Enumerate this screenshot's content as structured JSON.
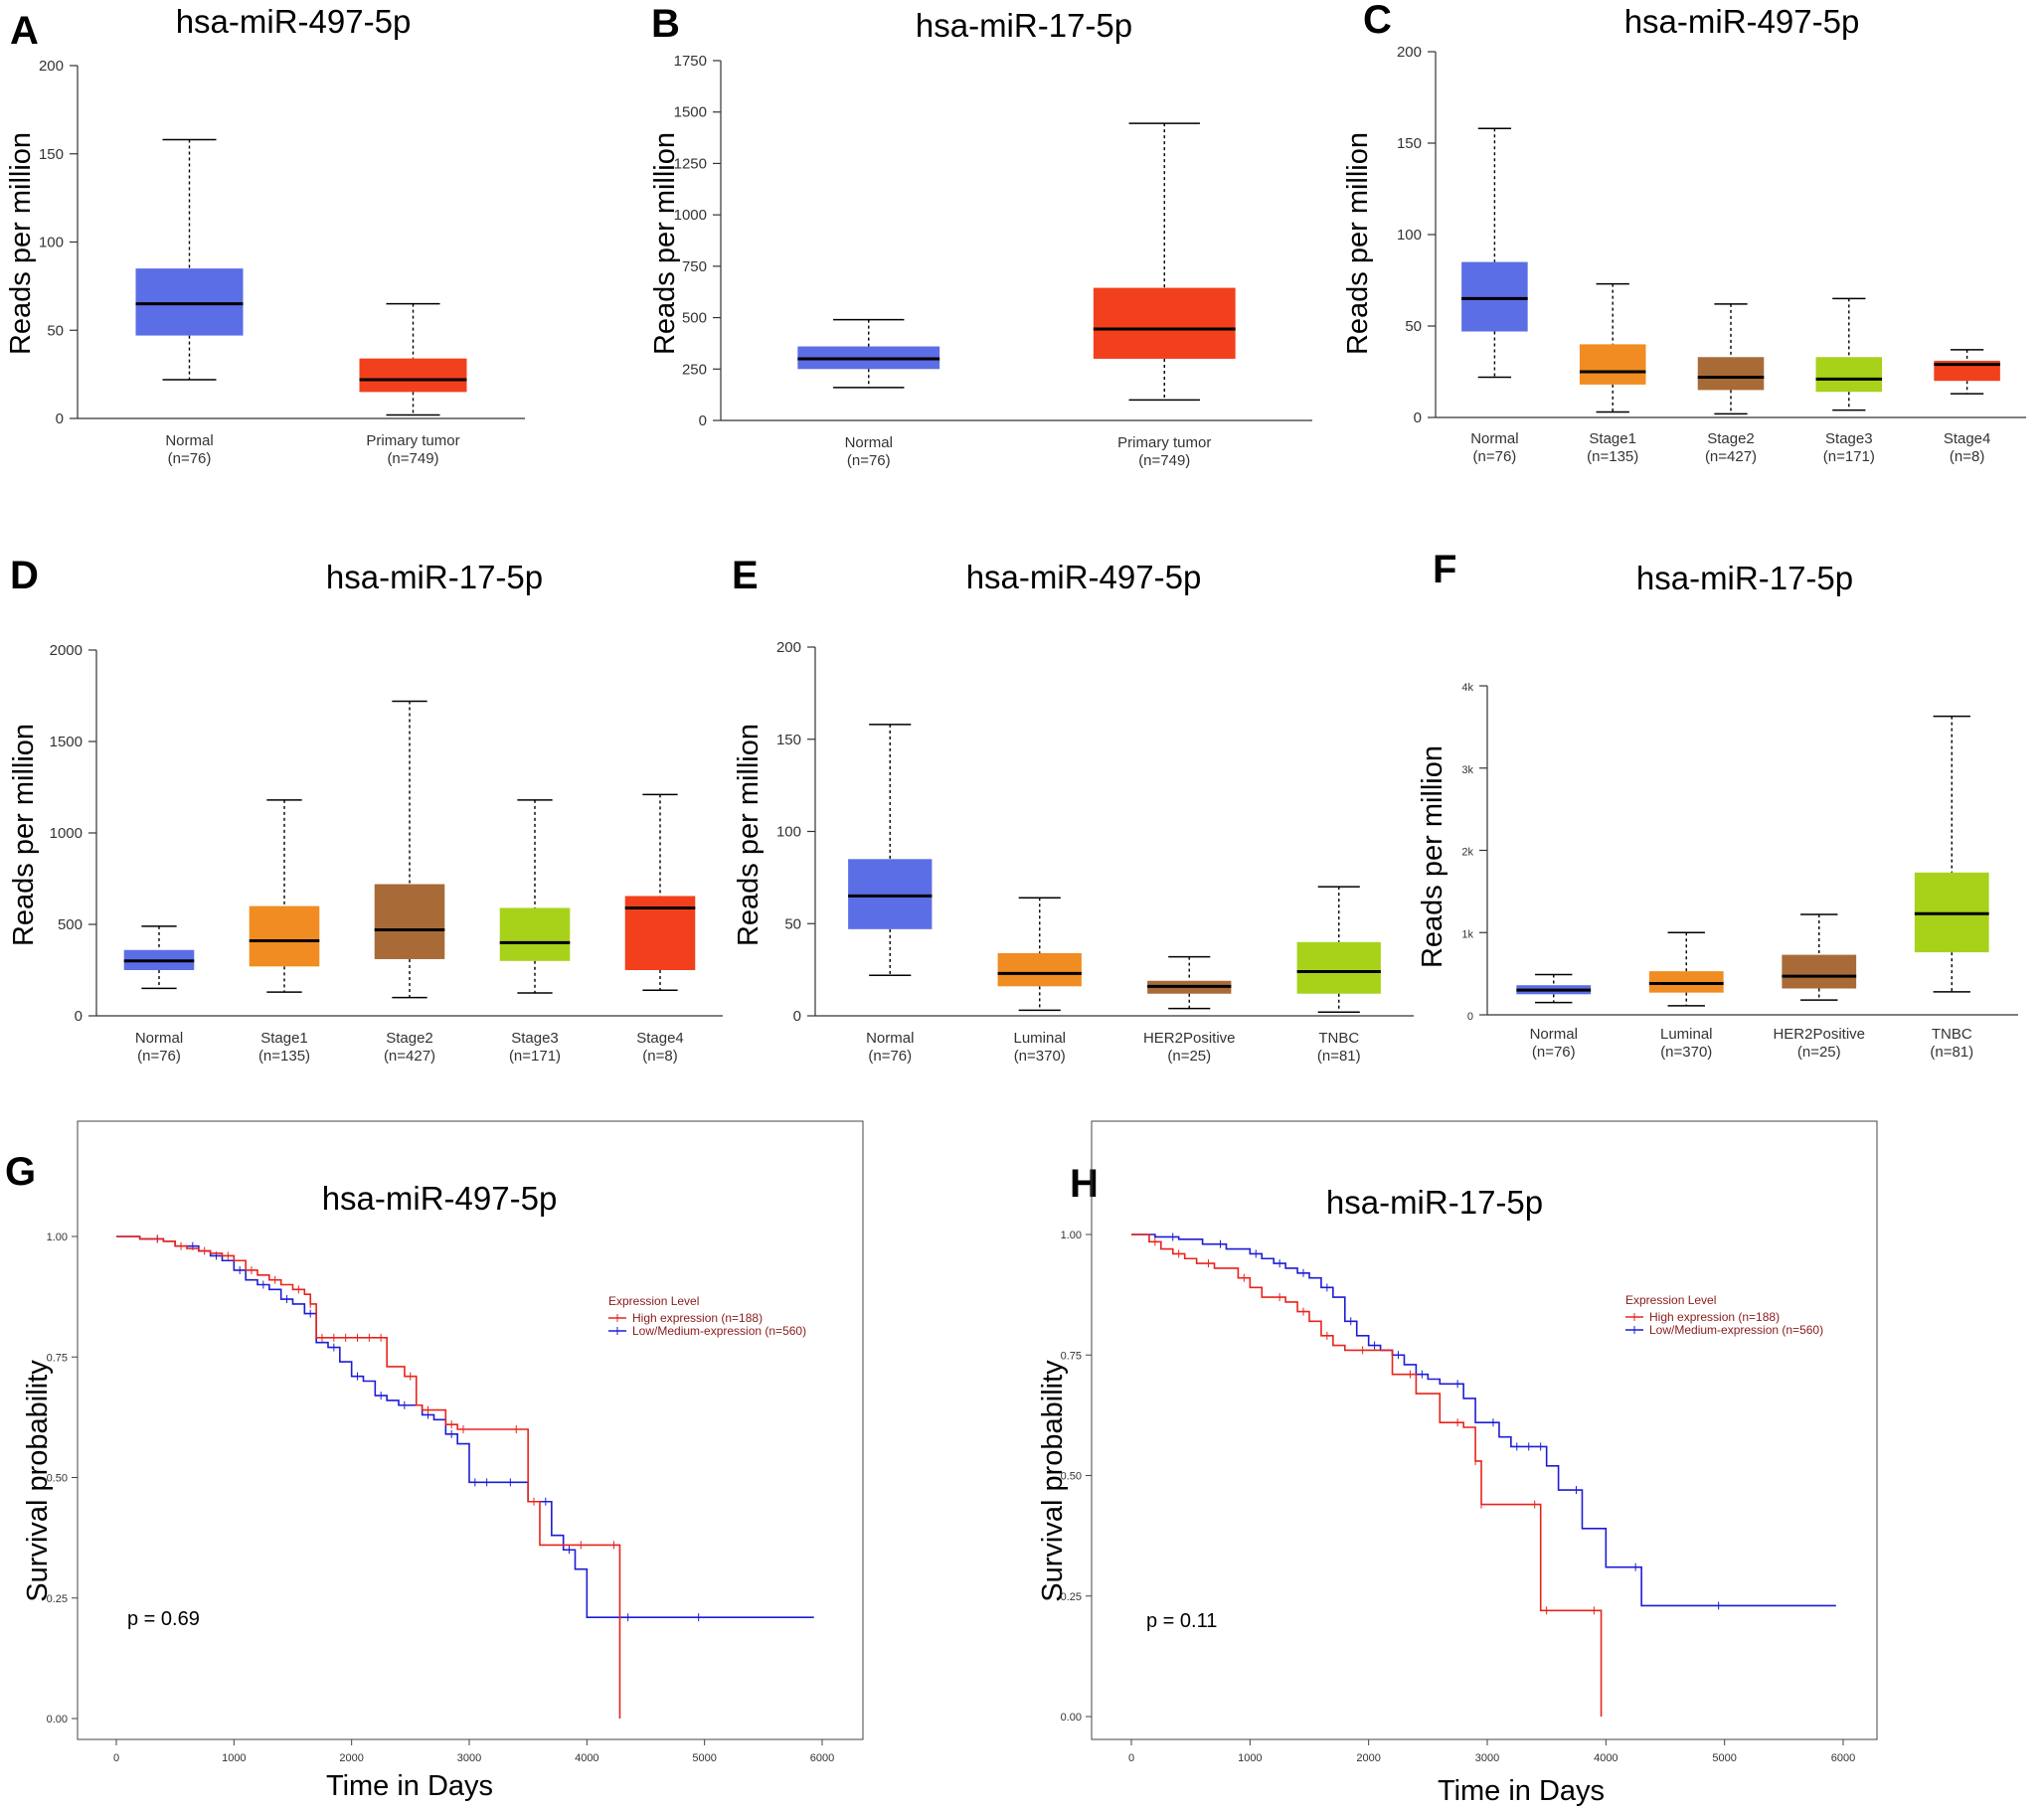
{
  "colors": {
    "normal": "#5b6ee6",
    "tumor": "#f2401c",
    "stage1": "#f08c21",
    "stage2": "#a86b38",
    "stage3": "#a8d21a",
    "stage4": "#f2401c",
    "luminal": "#f08c21",
    "her2": "#a86b38",
    "tnbc": "#a8d21a",
    "high": "#e8231b",
    "low": "#1c1cd6"
  },
  "chart_data": [
    {
      "id": "A",
      "type": "box",
      "title": "hsa-miR-497-5p",
      "ylabel": "Reads per million",
      "ylim": [
        0,
        200
      ],
      "yticks": [
        0,
        50,
        100,
        150,
        200
      ],
      "ytick_labels": [
        "0",
        "50",
        "100",
        "150",
        "200"
      ],
      "categories": [
        {
          "name": "Normal",
          "n": "(n=76)",
          "color": "normal",
          "min": 22,
          "q1": 47,
          "median": 65,
          "q3": 85,
          "max": 158
        },
        {
          "name": "Primary tumor",
          "n": "(n=749)",
          "color": "tumor",
          "min": 2,
          "q1": 15,
          "median": 22,
          "q3": 34,
          "max": 65
        }
      ]
    },
    {
      "id": "B",
      "type": "box",
      "title": "hsa-miR-17-5p",
      "ylabel": "Reads per million",
      "ylim": [
        0,
        1750
      ],
      "yticks": [
        0,
        250,
        500,
        750,
        1000,
        1250,
        1500,
        1750
      ],
      "ytick_labels": [
        "0",
        "250",
        "500",
        "750",
        "1000",
        "1250",
        "1500",
        "1750"
      ],
      "categories": [
        {
          "name": "Normal",
          "n": "(n=76)",
          "color": "normal",
          "min": 160,
          "q1": 250,
          "median": 300,
          "q3": 360,
          "max": 490
        },
        {
          "name": "Primary tumor",
          "n": "(n=749)",
          "color": "tumor",
          "min": 100,
          "q1": 300,
          "median": 445,
          "q3": 645,
          "max": 1445
        }
      ]
    },
    {
      "id": "C",
      "type": "box",
      "title": "hsa-miR-497-5p",
      "ylabel": "Reads per million",
      "ylim": [
        0,
        200
      ],
      "yticks": [
        0,
        50,
        100,
        150,
        200
      ],
      "ytick_labels": [
        "0",
        "50",
        "100",
        "150",
        "200"
      ],
      "categories": [
        {
          "name": "Normal",
          "n": "(n=76)",
          "color": "normal",
          "min": 22,
          "q1": 47,
          "median": 65,
          "q3": 85,
          "max": 158
        },
        {
          "name": "Stage1",
          "n": "(n=135)",
          "color": "stage1",
          "min": 3,
          "q1": 18,
          "median": 25,
          "q3": 40,
          "max": 73
        },
        {
          "name": "Stage2",
          "n": "(n=427)",
          "color": "stage2",
          "min": 2,
          "q1": 15,
          "median": 22,
          "q3": 33,
          "max": 62
        },
        {
          "name": "Stage3",
          "n": "(n=171)",
          "color": "stage3",
          "min": 4,
          "q1": 14,
          "median": 21,
          "q3": 33,
          "max": 65
        },
        {
          "name": "Stage4",
          "n": "(n=8)",
          "color": "stage4",
          "min": 13,
          "q1": 20,
          "median": 29,
          "q3": 31,
          "max": 37
        }
      ]
    },
    {
      "id": "D",
      "type": "box",
      "title": "hsa-miR-17-5p",
      "ylabel": "Reads per million",
      "ylim": [
        0,
        2000
      ],
      "yticks": [
        0,
        500,
        1000,
        1500,
        2000
      ],
      "ytick_labels": [
        "0",
        "500",
        "1000",
        "1500",
        "2000"
      ],
      "categories": [
        {
          "name": "Normal",
          "n": "(n=76)",
          "color": "normal",
          "min": 150,
          "q1": 250,
          "median": 300,
          "q3": 360,
          "max": 490
        },
        {
          "name": "Stage1",
          "n": "(n=135)",
          "color": "stage1",
          "min": 130,
          "q1": 270,
          "median": 410,
          "q3": 600,
          "max": 1180
        },
        {
          "name": "Stage2",
          "n": "(n=427)",
          "color": "stage2",
          "min": 100,
          "q1": 310,
          "median": 470,
          "q3": 720,
          "max": 1720
        },
        {
          "name": "Stage3",
          "n": "(n=171)",
          "color": "stage3",
          "min": 125,
          "q1": 300,
          "median": 400,
          "q3": 590,
          "max": 1180
        },
        {
          "name": "Stage4",
          "n": "(n=8)",
          "color": "stage4",
          "min": 140,
          "q1": 250,
          "median": 590,
          "q3": 655,
          "max": 1210
        }
      ]
    },
    {
      "id": "E",
      "type": "box",
      "title": "hsa-miR-497-5p",
      "ylabel": "Reads per million",
      "ylim": [
        0,
        200
      ],
      "yticks": [
        0,
        50,
        100,
        150,
        200
      ],
      "ytick_labels": [
        "0",
        "50",
        "100",
        "150",
        "200"
      ],
      "categories": [
        {
          "name": "Normal",
          "n": "(n=76)",
          "color": "normal",
          "min": 22,
          "q1": 47,
          "median": 65,
          "q3": 85,
          "max": 158
        },
        {
          "name": "Luminal",
          "n": "(n=370)",
          "color": "luminal",
          "min": 3,
          "q1": 16,
          "median": 23,
          "q3": 34,
          "max": 64
        },
        {
          "name": "HER2Positive",
          "n": "(n=25)",
          "color": "her2",
          "min": 4,
          "q1": 12,
          "median": 16,
          "q3": 19,
          "max": 32
        },
        {
          "name": "TNBC",
          "n": "(n=81)",
          "color": "tnbc",
          "min": 2,
          "q1": 12,
          "median": 24,
          "q3": 40,
          "max": 70
        }
      ]
    },
    {
      "id": "F",
      "type": "box",
      "title": "hsa-miR-17-5p",
      "ylabel": "Reads per million",
      "ylim": [
        0,
        4000
      ],
      "yticks": [
        0,
        1000,
        2000,
        3000,
        4000
      ],
      "ytick_labels": [
        "0",
        "1k",
        "2k",
        "3k",
        "4k"
      ],
      "categories": [
        {
          "name": "Normal",
          "n": "(n=76)",
          "color": "normal",
          "min": 150,
          "q1": 250,
          "median": 300,
          "q3": 360,
          "max": 490
        },
        {
          "name": "Luminal",
          "n": "(n=370)",
          "color": "luminal",
          "min": 110,
          "q1": 270,
          "median": 380,
          "q3": 530,
          "max": 1000
        },
        {
          "name": "HER2Positive",
          "n": "(n=25)",
          "color": "her2",
          "min": 180,
          "q1": 320,
          "median": 470,
          "q3": 730,
          "max": 1220
        },
        {
          "name": "TNBC",
          "n": "(n=81)",
          "color": "tnbc",
          "min": 280,
          "q1": 760,
          "median": 1230,
          "q3": 1730,
          "max": 3630
        }
      ]
    },
    {
      "id": "G",
      "type": "line",
      "subtype": "kaplan-meier",
      "title": "hsa-miR-497-5p",
      "xlabel": "Time in Days",
      "ylabel": "Survival probability",
      "xlim": [
        0,
        6000
      ],
      "ylim": [
        0,
        1
      ],
      "xticks": [
        0,
        1000,
        2000,
        3000,
        4000,
        5000,
        6000
      ],
      "xtick_labels": [
        "0",
        "1000",
        "2000",
        "3000",
        "4000",
        "5000",
        "6000"
      ],
      "yticks": [
        0,
        0.25,
        0.5,
        0.75,
        1
      ],
      "ytick_labels": [
        "0.00",
        "0.25",
        "0.50",
        "0.75",
        "1.00"
      ],
      "legend_title": "Expression Level",
      "pvalue": "p = 0.69",
      "series": [
        {
          "name": "High expression (n=188)",
          "color": "high",
          "t": [
            0,
            200,
            400,
            500,
            600,
            700,
            800,
            900,
            1000,
            1100,
            1200,
            1300,
            1400,
            1500,
            1600,
            1650,
            1700,
            1800,
            1900,
            2000,
            2100,
            2200,
            2300,
            2450,
            2550,
            2600,
            2700,
            2800,
            2900,
            3000,
            3450,
            3500,
            3600,
            4000,
            4280,
            4280
          ],
          "s": [
            1.0,
            0.995,
            0.99,
            0.98,
            0.975,
            0.97,
            0.965,
            0.96,
            0.95,
            0.93,
            0.92,
            0.91,
            0.9,
            0.89,
            0.88,
            0.86,
            0.79,
            0.79,
            0.79,
            0.79,
            0.79,
            0.79,
            0.73,
            0.71,
            0.65,
            0.64,
            0.64,
            0.61,
            0.6,
            0.6,
            0.6,
            0.45,
            0.36,
            0.36,
            0.36,
            0.0
          ]
        },
        {
          "name": "Low/Medium-expression (n=560)",
          "color": "low",
          "t": [
            0,
            200,
            400,
            500,
            700,
            800,
            900,
            1000,
            1100,
            1200,
            1300,
            1400,
            1500,
            1600,
            1700,
            1800,
            1900,
            2000,
            2100,
            2200,
            2300,
            2400,
            2500,
            2600,
            2700,
            2800,
            2900,
            3000,
            3100,
            3200,
            3400,
            3500,
            3700,
            3800,
            3900,
            4000,
            4400,
            5000,
            5930
          ],
          "s": [
            1.0,
            0.995,
            0.99,
            0.98,
            0.97,
            0.96,
            0.95,
            0.93,
            0.91,
            0.9,
            0.89,
            0.87,
            0.86,
            0.84,
            0.78,
            0.77,
            0.74,
            0.71,
            0.7,
            0.67,
            0.66,
            0.65,
            0.65,
            0.63,
            0.62,
            0.59,
            0.57,
            0.49,
            0.49,
            0.49,
            0.49,
            0.45,
            0.38,
            0.35,
            0.31,
            0.21,
            0.21,
            0.21,
            0.21
          ]
        }
      ]
    },
    {
      "id": "H",
      "type": "line",
      "subtype": "kaplan-meier",
      "title": "hsa-miR-17-5p",
      "xlabel": "Time in Days",
      "ylabel": "Survival probability",
      "xlim": [
        0,
        6000
      ],
      "ylim": [
        0,
        1
      ],
      "xticks": [
        0,
        1000,
        2000,
        3000,
        4000,
        5000,
        6000
      ],
      "xtick_labels": [
        "0",
        "1000",
        "2000",
        "3000",
        "4000",
        "5000",
        "6000"
      ],
      "yticks": [
        0,
        0.25,
        0.5,
        0.75,
        1
      ],
      "ytick_labels": [
        "0.00",
        "0.25",
        "0.50",
        "0.75",
        "1.00"
      ],
      "legend_title": "Expression Level",
      "pvalue": "p = 0.11",
      "series": [
        {
          "name": "High expression (n=188)",
          "color": "high",
          "t": [
            0,
            150,
            250,
            350,
            450,
            550,
            700,
            900,
            1000,
            1100,
            1300,
            1400,
            1500,
            1600,
            1700,
            1800,
            2000,
            2200,
            2400,
            2600,
            2800,
            2900,
            2950,
            3000,
            3450,
            3550,
            3950,
            3960
          ],
          "s": [
            1.0,
            0.985,
            0.97,
            0.96,
            0.95,
            0.94,
            0.93,
            0.91,
            0.89,
            0.87,
            0.86,
            0.84,
            0.82,
            0.79,
            0.77,
            0.76,
            0.76,
            0.71,
            0.67,
            0.61,
            0.6,
            0.53,
            0.44,
            0.44,
            0.22,
            0.22,
            0.22,
            0.0
          ]
        },
        {
          "name": "Low/Medium-expression (n=560)",
          "color": "low",
          "t": [
            0,
            200,
            400,
            600,
            800,
            1000,
            1100,
            1200,
            1300,
            1400,
            1500,
            1600,
            1700,
            1800,
            1900,
            2000,
            2100,
            2200,
            2300,
            2400,
            2500,
            2600,
            2800,
            2900,
            3100,
            3200,
            3300,
            3400,
            3500,
            3600,
            3800,
            4000,
            4300,
            5000,
            5940
          ],
          "s": [
            1.0,
            0.995,
            0.99,
            0.98,
            0.97,
            0.96,
            0.95,
            0.94,
            0.93,
            0.92,
            0.91,
            0.89,
            0.87,
            0.82,
            0.79,
            0.77,
            0.76,
            0.75,
            0.73,
            0.71,
            0.7,
            0.69,
            0.66,
            0.61,
            0.58,
            0.56,
            0.56,
            0.56,
            0.52,
            0.47,
            0.39,
            0.31,
            0.23,
            0.23,
            0.23
          ]
        }
      ]
    }
  ]
}
